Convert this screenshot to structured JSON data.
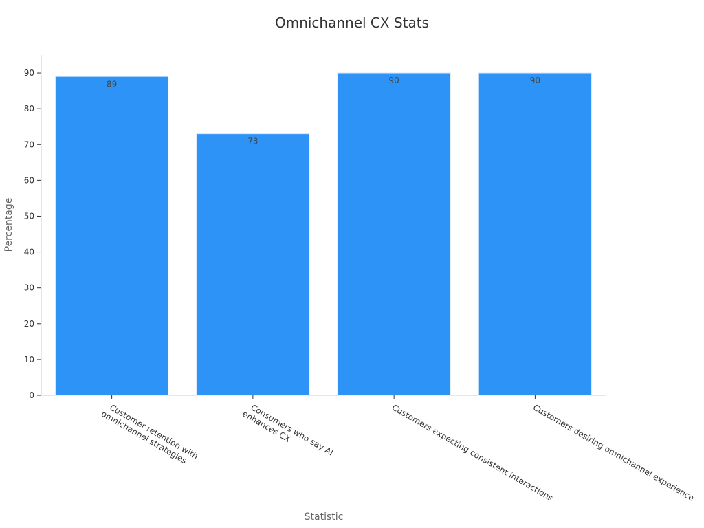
{
  "chart_data": {
    "type": "bar",
    "title": "Omnichannel CX Stats",
    "xlabel": "Statistic",
    "ylabel": "Percentage",
    "categories": [
      [
        "Customer retention with",
        "omnichannel strategies"
      ],
      [
        "Consumers who say AI",
        "enhances CX"
      ],
      [
        "Customers expecting consistent interactions"
      ],
      [
        "Customers desiring omnichannel experience"
      ]
    ],
    "values": [
      89,
      73,
      90,
      90
    ],
    "ylim": [
      0,
      95
    ],
    "yticks": [
      0,
      10,
      20,
      30,
      40,
      50,
      60,
      70,
      80,
      90
    ],
    "bar_color": "#2e93f7",
    "data_labels": true,
    "grid": false,
    "legend": "none"
  }
}
